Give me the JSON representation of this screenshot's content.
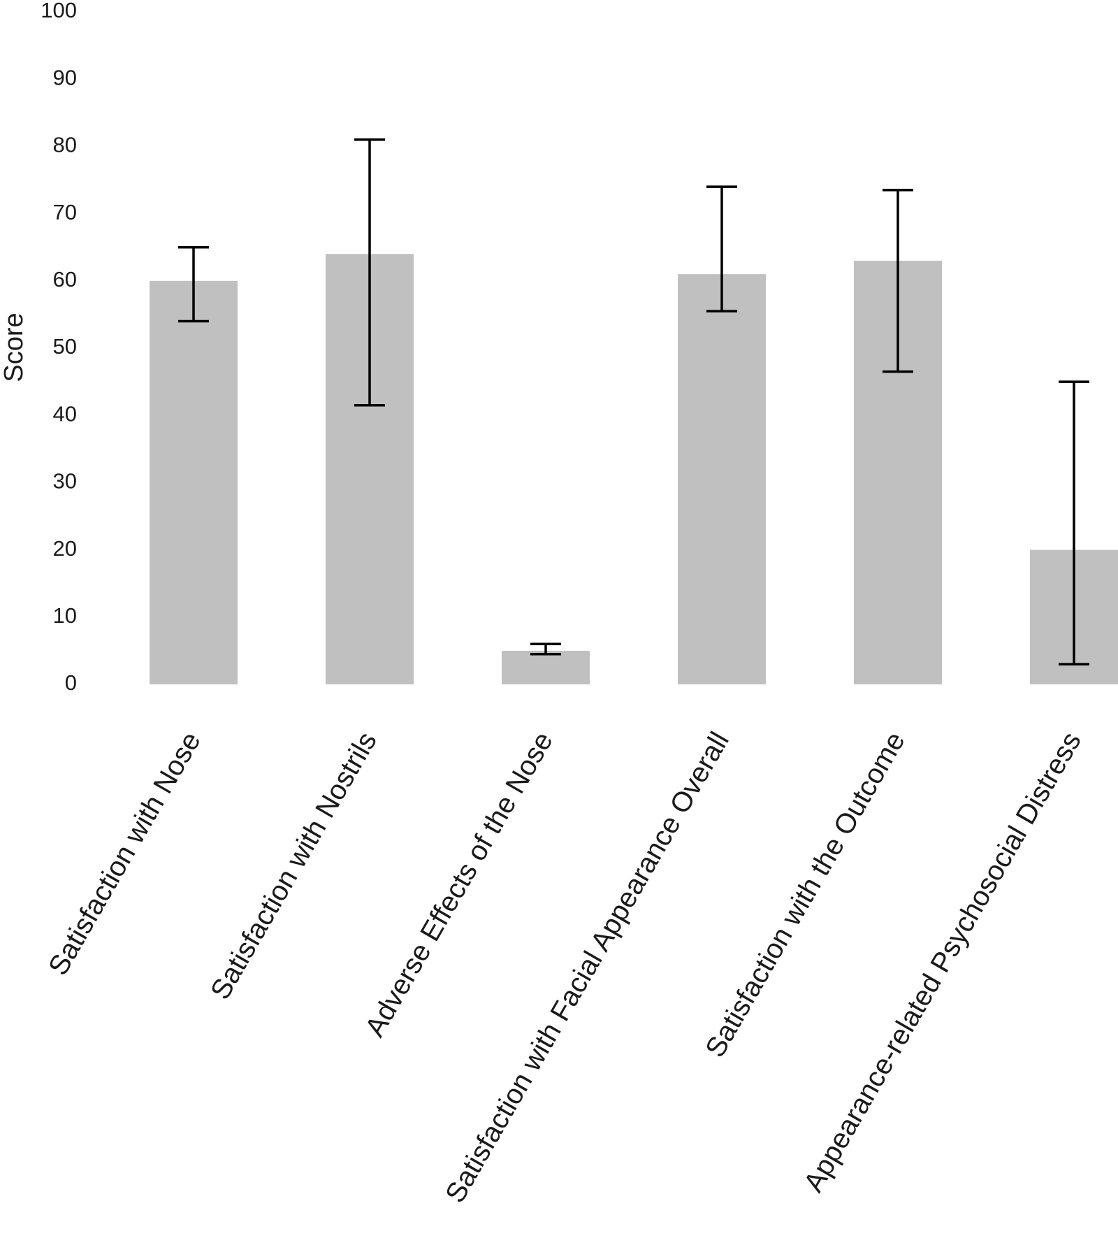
{
  "chart_data": {
    "type": "bar",
    "title": "",
    "xlabel": "",
    "ylabel": "Score",
    "ylim": [
      0,
      100
    ],
    "yticks": [
      0,
      10,
      20,
      30,
      40,
      50,
      60,
      70,
      80,
      90,
      100
    ],
    "grid": false,
    "categories": [
      "Satisfaction with Nose",
      "Satisfaction with Nostrils",
      "Adverse Effects of the Nose",
      "Satisfaction with Facial Appearance Overall",
      "Satisfaction with the Outcome",
      "Appearance-related Psychosocial Distress"
    ],
    "values": [
      60,
      64,
      5,
      61,
      63,
      20
    ],
    "error_bars": [
      {
        "low": 54,
        "high": 65
      },
      {
        "low": 41.5,
        "high": 81
      },
      {
        "low": 4.5,
        "high": 6
      },
      {
        "low": 55.5,
        "high": 74
      },
      {
        "low": 46.5,
        "high": 73.5
      },
      {
        "low": 3,
        "high": 45
      }
    ],
    "bar_color": "#c0c0c0",
    "error_bar_color": "#000000"
  }
}
